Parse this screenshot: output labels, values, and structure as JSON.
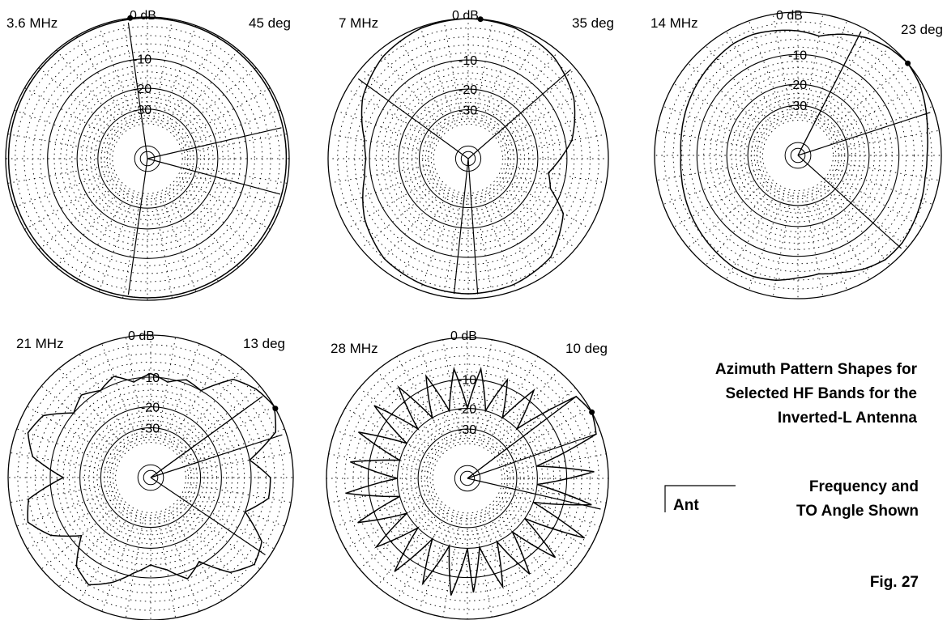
{
  "figure": {
    "title_lines": [
      "Azimuth Pattern Shapes for",
      "Selected HF Bands for the",
      "Inverted-L Antenna"
    ],
    "legend_label": "Ant",
    "legend_caption_lines": [
      "Frequency and",
      "TO Angle Shown"
    ],
    "fig_label": "Fig. 27"
  },
  "chart_data": [
    {
      "type": "polar",
      "title": "3.6 MHz",
      "takeoff_angle_label": "45 deg",
      "ring_labels": [
        "0 dB",
        "-10",
        "-20",
        "-30"
      ],
      "angle_grid_step_deg": 10,
      "beamwidth_lines_deg": [
        [
          77,
          105
        ],
        [
          -8,
          188
        ]
      ],
      "max_gain_direction_deg": -7,
      "pattern_db": [
        [
          -180,
          -0.5
        ],
        [
          -90,
          -0.6
        ],
        [
          0,
          -0.2
        ],
        [
          90,
          -0.6
        ],
        [
          180,
          -0.5
        ]
      ]
    },
    {
      "type": "polar",
      "title": "7 MHz",
      "takeoff_angle_label": "35 deg",
      "ring_labels": [
        "0 dB",
        "-10",
        "-20",
        "-30"
      ],
      "angle_grid_step_deg": 10,
      "beamwidth_lines_deg": [
        [
          -54,
          49
        ],
        [
          186,
          176
        ]
      ],
      "max_gain_direction_deg": 5,
      "pattern_db": [
        [
          -180,
          -1.0
        ],
        [
          -160,
          -1.3
        ],
        [
          -140,
          -2.0
        ],
        [
          -120,
          -4.5
        ],
        [
          -100,
          -8.2
        ],
        [
          -90,
          -9.0
        ],
        [
          -80,
          -8.2
        ],
        [
          -60,
          -4.0
        ],
        [
          -40,
          -1.5
        ],
        [
          -20,
          -0.3
        ],
        [
          0,
          0.0
        ],
        [
          20,
          -0.3
        ],
        [
          40,
          -1.5
        ],
        [
          60,
          -4.0
        ],
        [
          80,
          -8.2
        ],
        [
          90,
          -12.0
        ],
        [
          100,
          -15.5
        ],
        [
          110,
          -13.5
        ],
        [
          120,
          -7.0
        ],
        [
          140,
          -2.5
        ],
        [
          160,
          -1.3
        ],
        [
          180,
          -1.0
        ]
      ]
    },
    {
      "type": "polar",
      "title": "14 MHz",
      "takeoff_angle_label": "23 deg",
      "ring_labels": [
        "0 dB",
        "-10",
        "-20",
        "-30"
      ],
      "angle_grid_step_deg": 10,
      "beamwidth_lines_deg": [
        [
          27,
          72
        ],
        [
          27,
          132
        ]
      ],
      "max_gain_direction_deg": 50,
      "pattern_db": [
        [
          -180,
          -4.5
        ],
        [
          -170,
          -3.5
        ],
        [
          -160,
          -3.0
        ],
        [
          -150,
          -3.0
        ],
        [
          -140,
          -3.5
        ],
        [
          -130,
          -4.0
        ],
        [
          -120,
          -4.5
        ],
        [
          -110,
          -5.0
        ],
        [
          -100,
          -5.5
        ],
        [
          -90,
          -5.8
        ],
        [
          -80,
          -5.5
        ],
        [
          -70,
          -5.0
        ],
        [
          -60,
          -4.5
        ],
        [
          -50,
          -4.0
        ],
        [
          -40,
          -3.5
        ],
        [
          -30,
          -3.0
        ],
        [
          -20,
          -3.0
        ],
        [
          -10,
          -3.5
        ],
        [
          0,
          -4.0
        ],
        [
          10,
          -4.8
        ],
        [
          20,
          -3.0
        ],
        [
          30,
          -1.5
        ],
        [
          40,
          -0.5
        ],
        [
          50,
          0.0
        ],
        [
          60,
          -0.5
        ],
        [
          70,
          -1.5
        ],
        [
          80,
          -2.5
        ],
        [
          90,
          -3.0
        ],
        [
          100,
          -3.0
        ],
        [
          110,
          -2.5
        ],
        [
          120,
          -2.0
        ],
        [
          130,
          -1.5
        ],
        [
          140,
          -1.5
        ],
        [
          150,
          -2.5
        ],
        [
          160,
          -4.0
        ],
        [
          170,
          -5.0
        ],
        [
          180,
          -4.5
        ]
      ]
    },
    {
      "type": "polar",
      "title": "21 MHz",
      "takeoff_angle_label": "13 deg",
      "ring_labels": [
        "0 dB",
        "-10",
        "-20",
        "-30"
      ],
      "angle_grid_step_deg": 10,
      "beamwidth_lines_deg": [
        [
          54,
          72
        ],
        [
          54,
          124
        ]
      ],
      "max_gain_direction_deg": 61,
      "pattern_db": [
        [
          -180,
          -14.0
        ],
        [
          -170,
          -11.0
        ],
        [
          -160,
          -7.0
        ],
        [
          -150,
          -4.0
        ],
        [
          -140,
          -6.0
        ],
        [
          -130,
          -13.0
        ],
        [
          -120,
          -6.0
        ],
        [
          -110,
          -2.5
        ],
        [
          -100,
          -4.0
        ],
        [
          -90,
          -14.0
        ],
        [
          -80,
          -5.0
        ],
        [
          -70,
          -2.5
        ],
        [
          -60,
          -4.0
        ],
        [
          -50,
          -10.0
        ],
        [
          -40,
          -8.0
        ],
        [
          -30,
          -10.0
        ],
        [
          -20,
          -8.0
        ],
        [
          -10,
          -11.0
        ],
        [
          0,
          -9.0
        ],
        [
          10,
          -11.0
        ],
        [
          20,
          -9.0
        ],
        [
          30,
          -10.0
        ],
        [
          40,
          -3.0
        ],
        [
          50,
          -1.0
        ],
        [
          60,
          0.0
        ],
        [
          70,
          -2.0
        ],
        [
          80,
          -10.0
        ],
        [
          90,
          -5.0
        ],
        [
          100,
          -5.0
        ],
        [
          110,
          -10.0
        ],
        [
          120,
          -3.0
        ],
        [
          130,
          -1.5
        ],
        [
          140,
          -4.0
        ],
        [
          150,
          -11.0
        ],
        [
          160,
          -8.0
        ],
        [
          170,
          -12.0
        ],
        [
          180,
          -14.0
        ]
      ]
    },
    {
      "type": "polar",
      "title": "28 MHz",
      "takeoff_angle_label": "10 deg",
      "ring_labels": [
        "0 dB",
        "-10",
        "-20",
        "-30"
      ],
      "angle_grid_step_deg": 10,
      "beamwidth_lines_deg": [
        [
          53,
          71
        ],
        [
          53,
          103
        ]
      ],
      "max_gain_direction_deg": 62,
      "pattern_db": [
        [
          -180,
          -20
        ],
        [
          -172,
          -5
        ],
        [
          -165,
          -20
        ],
        [
          -157,
          -6
        ],
        [
          -150,
          -20
        ],
        [
          -142,
          -5
        ],
        [
          -135,
          -20
        ],
        [
          -127,
          -6
        ],
        [
          -120,
          -20
        ],
        [
          -112,
          -5
        ],
        [
          -105,
          -20
        ],
        [
          -97,
          -4
        ],
        [
          -90,
          -20
        ],
        [
          -82,
          -5
        ],
        [
          -75,
          -20
        ],
        [
          -67,
          -5
        ],
        [
          -60,
          -20
        ],
        [
          -52,
          -5
        ],
        [
          -45,
          -20
        ],
        [
          -37,
          -6
        ],
        [
          -30,
          -20
        ],
        [
          -22,
          -7
        ],
        [
          -15,
          -20
        ],
        [
          -7,
          -7
        ],
        [
          0,
          -20
        ],
        [
          7,
          -7
        ],
        [
          15,
          -20
        ],
        [
          22,
          -8
        ],
        [
          30,
          -20
        ],
        [
          37,
          -7
        ],
        [
          45,
          -20
        ],
        [
          53,
          -1
        ],
        [
          62,
          0
        ],
        [
          71,
          -1
        ],
        [
          80,
          -20
        ],
        [
          87,
          -3
        ],
        [
          95,
          -20
        ],
        [
          102,
          -3
        ],
        [
          110,
          -20
        ],
        [
          117,
          -2
        ],
        [
          125,
          -20
        ],
        [
          132,
          -5
        ],
        [
          140,
          -20
        ],
        [
          147,
          -6
        ],
        [
          155,
          -20
        ],
        [
          162,
          -6
        ],
        [
          170,
          -20
        ],
        [
          177,
          -6
        ],
        [
          180,
          -20
        ]
      ]
    }
  ]
}
